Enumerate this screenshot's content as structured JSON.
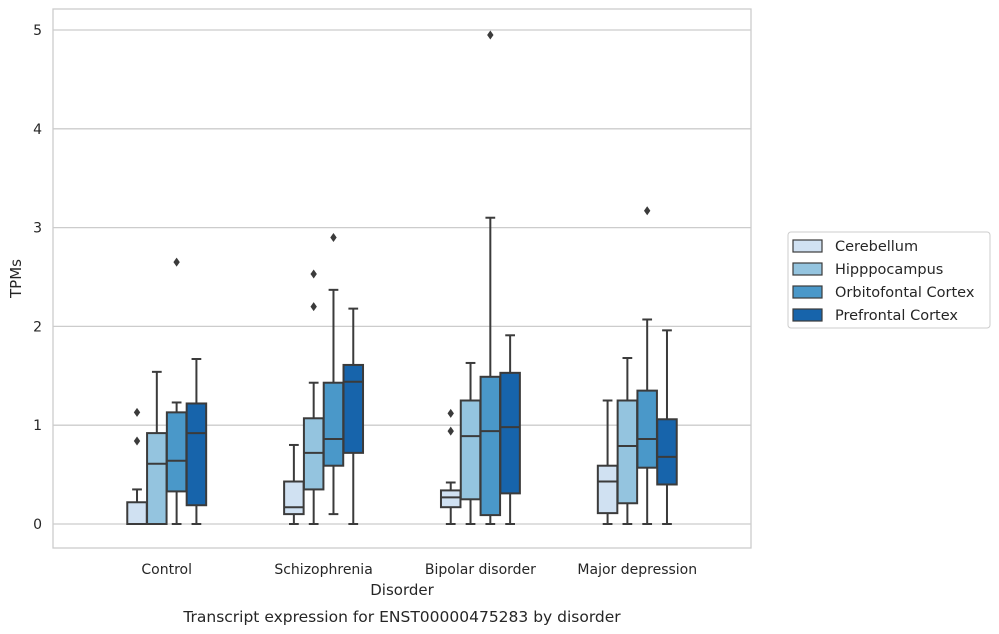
{
  "chart_data": {
    "type": "boxplot",
    "xlabel": "Disorder",
    "ylabel": "TPMs",
    "caption": "Transcript expression for ENST00000475283 by disorder",
    "ylim": [
      -0.24,
      5.22
    ],
    "yticks": [
      0,
      1,
      2,
      3,
      4,
      5
    ],
    "grid": "horizontal",
    "legend_position": "right",
    "categories": [
      "Control",
      "Schizophrenia",
      "Bipolar disorder",
      "Major depression"
    ],
    "series": [
      {
        "name": "Cerebellum",
        "color": "#d0e1f2",
        "boxes": [
          {
            "whislo": 0.0,
            "q1": 0.0,
            "med": 0.0,
            "q3": 0.22,
            "whishi": 0.35,
            "fliers": [
              0.84,
              1.13
            ]
          },
          {
            "whislo": 0.0,
            "q1": 0.1,
            "med": 0.17,
            "q3": 0.43,
            "whishi": 0.8,
            "fliers": []
          },
          {
            "whislo": 0.0,
            "q1": 0.17,
            "med": 0.27,
            "q3": 0.34,
            "whishi": 0.42,
            "fliers": [
              0.94,
              1.12
            ]
          },
          {
            "whislo": 0.0,
            "q1": 0.11,
            "med": 0.43,
            "q3": 0.59,
            "whishi": 1.25,
            "fliers": []
          }
        ]
      },
      {
        "name": "Hipppocampus",
        "color": "#94c4df",
        "boxes": [
          {
            "whislo": 0.0,
            "q1": 0.0,
            "med": 0.61,
            "q3": 0.92,
            "whishi": 1.54,
            "fliers": []
          },
          {
            "whislo": 0.0,
            "q1": 0.35,
            "med": 0.72,
            "q3": 1.07,
            "whishi": 1.43,
            "fliers": [
              2.2,
              2.53
            ]
          },
          {
            "whislo": 0.0,
            "q1": 0.25,
            "med": 0.89,
            "q3": 1.25,
            "whishi": 1.63,
            "fliers": []
          },
          {
            "whislo": 0.0,
            "q1": 0.21,
            "med": 0.79,
            "q3": 1.25,
            "whishi": 1.68,
            "fliers": []
          }
        ]
      },
      {
        "name": "Orbitofontal Cortex",
        "color": "#4a98c9",
        "boxes": [
          {
            "whislo": 0.0,
            "q1": 0.33,
            "med": 0.64,
            "q3": 1.13,
            "whishi": 1.23,
            "fliers": [
              2.65
            ]
          },
          {
            "whislo": 0.1,
            "q1": 0.59,
            "med": 0.86,
            "q3": 1.43,
            "whishi": 2.37,
            "fliers": [
              2.9
            ]
          },
          {
            "whislo": 0.0,
            "q1": 0.09,
            "med": 0.94,
            "q3": 1.49,
            "whishi": 3.1,
            "fliers": [
              4.95
            ]
          },
          {
            "whislo": 0.0,
            "q1": 0.57,
            "med": 0.86,
            "q3": 1.35,
            "whishi": 2.07,
            "fliers": [
              3.17
            ]
          }
        ]
      },
      {
        "name": "Prefrontal Cortex",
        "color": "#1764ab",
        "boxes": [
          {
            "whislo": 0.0,
            "q1": 0.19,
            "med": 0.92,
            "q3": 1.22,
            "whishi": 1.67,
            "fliers": []
          },
          {
            "whislo": 0.0,
            "q1": 0.72,
            "med": 1.44,
            "q3": 1.61,
            "whishi": 2.18,
            "fliers": []
          },
          {
            "whislo": 0.0,
            "q1": 0.31,
            "med": 0.98,
            "q3": 1.53,
            "whishi": 1.91,
            "fliers": []
          },
          {
            "whislo": 0.0,
            "q1": 0.4,
            "med": 0.68,
            "q3": 1.06,
            "whishi": 1.96,
            "fliers": []
          }
        ]
      }
    ]
  }
}
